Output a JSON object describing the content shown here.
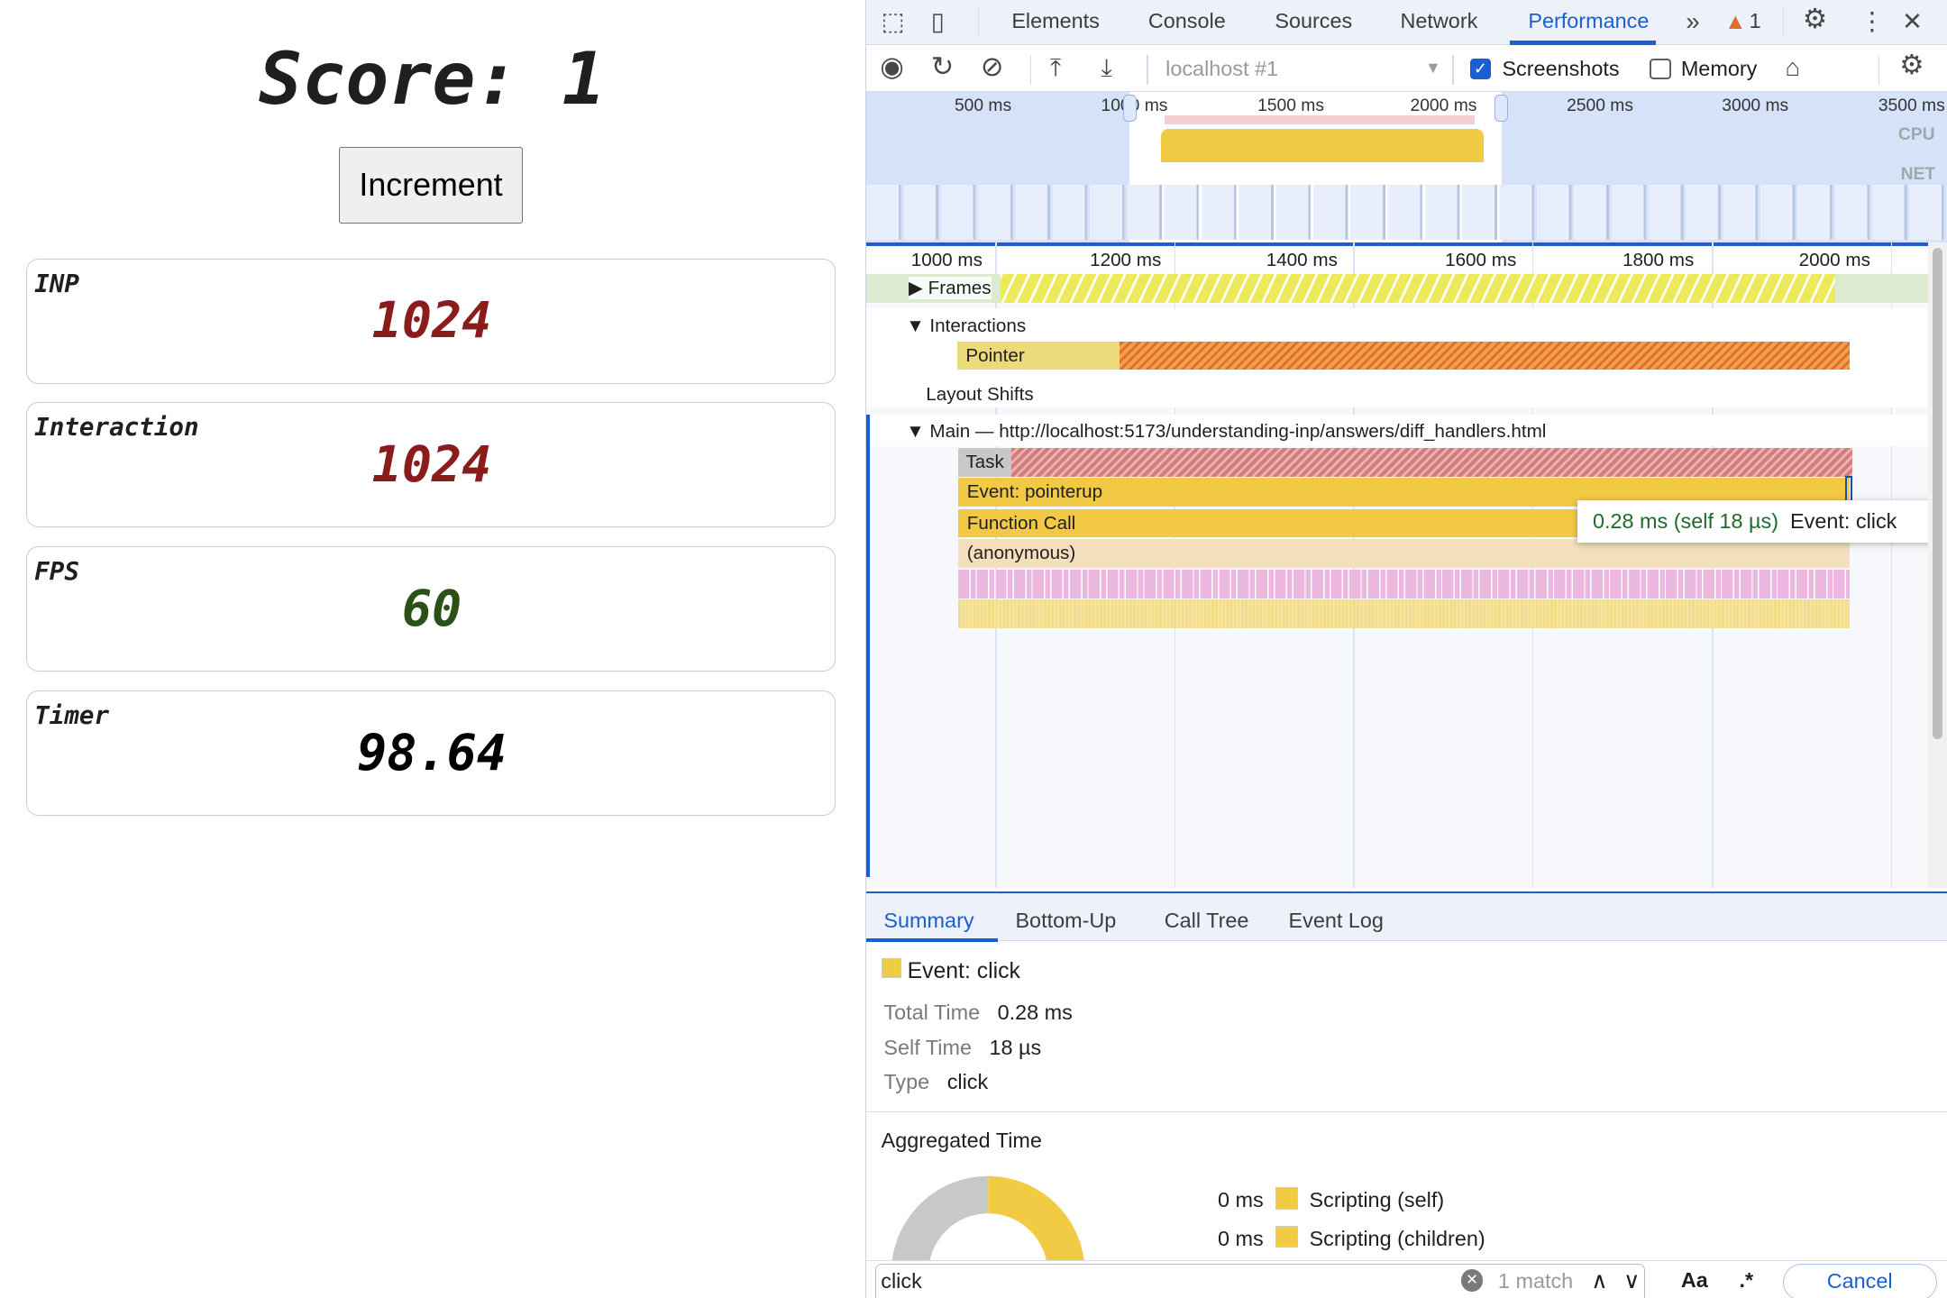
{
  "page": {
    "score": "Score: 1",
    "increment_label": "Increment",
    "metrics": [
      {
        "label": "INP",
        "value": "1024",
        "color": "#8b1c1c"
      },
      {
        "label": "Interaction",
        "value": "1024",
        "color": "#8b1c1c"
      },
      {
        "label": "FPS",
        "value": "60",
        "color": "#2a5218"
      },
      {
        "label": "Timer",
        "value": "98.64",
        "color": "#000000"
      }
    ]
  },
  "devtools": {
    "tabs": [
      "Elements",
      "Console",
      "Sources",
      "Network",
      "Performance"
    ],
    "active_tab": "Performance",
    "warning_count": "1",
    "accent": "#1a5fd1",
    "toolbar": {
      "target": "localhost #1",
      "screenshots_label": "Screenshots",
      "screenshots_checked": true,
      "memory_label": "Memory",
      "memory_checked": false
    },
    "overview": {
      "ticks": [
        "500 ms",
        "1000 ms",
        "1500 ms",
        "2000 ms",
        "2500 ms",
        "3000 ms",
        "3500 ms"
      ],
      "cpu_label": "CPU",
      "net_label": "NET"
    },
    "ruler": [
      "1000 ms",
      "1200 ms",
      "1400 ms",
      "1600 ms",
      "1800 ms",
      "2000 ms"
    ],
    "tracks": {
      "frames": "Frames",
      "interactions": "Interactions",
      "pointer": "Pointer",
      "layout_shifts": "Layout Shifts",
      "main": "Main — http://localhost:5173/understanding-inp/answers/diff_handlers.html"
    },
    "flame": [
      "Task",
      "Event: pointerup",
      "Function Call",
      "(anonymous)"
    ],
    "tooltip": {
      "time": "0.28 ms (self 18 µs)",
      "name": "Event: click"
    },
    "bottom_tabs": [
      "Summary",
      "Bottom-Up",
      "Call Tree",
      "Event Log"
    ],
    "summary": {
      "title": "Event: click",
      "rows": [
        {
          "k": "Total Time",
          "v": "0.28 ms"
        },
        {
          "k": "Self Time",
          "v": "18 µs"
        },
        {
          "k": "Type",
          "v": "click"
        }
      ],
      "aggregated_title": "Aggregated Time",
      "legend": [
        {
          "value": "0 ms",
          "label": "Scripting (self)",
          "color": "#f2cb45"
        },
        {
          "value": "0 ms",
          "label": "Scripting (children)",
          "color": "#f2cb45"
        }
      ]
    },
    "search": {
      "value": "click",
      "matches": "1 match",
      "case_label": "Aa",
      "regex_label": ".*",
      "cancel_label": "Cancel"
    }
  }
}
